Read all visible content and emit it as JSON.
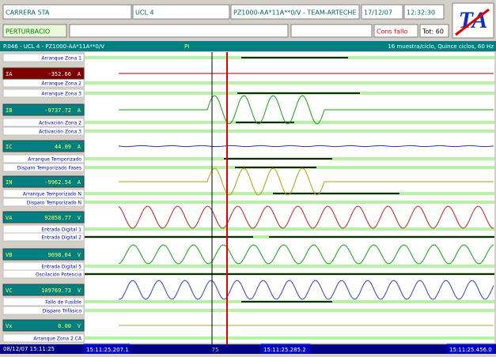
{
  "header": {
    "fields": [
      "CARRERA 5TA",
      "UCL 4",
      "PZ1000-AA*11A**0/V - TEAM-ARTECHE",
      "17/12/07",
      "12:32:30"
    ],
    "logo": "TA"
  },
  "status": {
    "mode": "PERTURBACIO",
    "alert": "Cons fallo",
    "total": "Tot: 60"
  },
  "info": {
    "event": "P.046 - UCL 4 - PZ1000-AA*11A**0/V",
    "marker": "PI",
    "sampling": "16 muestra/ciclo, Quince ciclos, 60 Hz"
  },
  "channels": [
    {
      "name": "IA",
      "value": "-352.66",
      "unit": "A"
    },
    {
      "name": "IB",
      "value": "-9737.72",
      "unit": "A"
    },
    {
      "name": "IC",
      "value": "44.09",
      "unit": "A"
    },
    {
      "name": "IN",
      "value": "-9962.54",
      "unit": "A"
    },
    {
      "name": "VA",
      "value": "92858.77",
      "unit": "V"
    },
    {
      "name": "VB",
      "value": "9698.04",
      "unit": "V"
    },
    {
      "name": "VC",
      "value": "109769.73",
      "unit": "V"
    },
    {
      "name": "Vx",
      "value": "0.00",
      "unit": "V"
    }
  ],
  "digital_channels": [
    "Arranque Zona 1",
    "Arranque Zona 2",
    "Arranque Zona 3",
    "Activación Zona 2",
    "Activación Zona 3",
    "Arranque Temporizado",
    "Disparo Temporizado Fases",
    "Arranque Temporizado N",
    "Disparo Temporizado N",
    "Entrada Digital 1",
    "Entrada Digital 2",
    "Entrada Digital 5",
    "Oscilación Potencia",
    "Fallo de Fusible",
    "Disparo Trifásico",
    "Arranque Zona 2 CA"
  ],
  "footer": {
    "start": "08/12/07  15:11:25",
    "cursor1": "15:11:25.207.1",
    "scale": "75",
    "cursor2": "15:11:25.285.2",
    "end": "15:11:25.456.0"
  }
}
